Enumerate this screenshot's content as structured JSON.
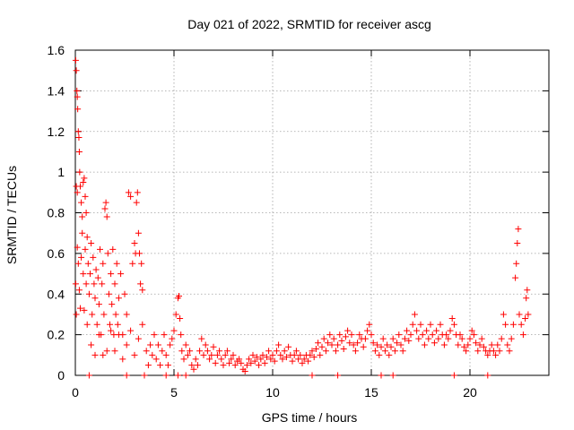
{
  "chart_data": {
    "type": "scatter",
    "title": "Day 021 of 2022, SRMTID for receiver ascg",
    "xlabel": "GPS time / hours",
    "ylabel": "SRMTID / TECUs",
    "xlim": [
      0,
      24
    ],
    "ylim": [
      0,
      1.6
    ],
    "xticks": [
      0,
      5,
      10,
      15,
      20
    ],
    "xtick_labels": [
      "0",
      "5",
      "10",
      "15",
      "20"
    ],
    "yticks": [
      0,
      0.2,
      0.4,
      0.6,
      0.8,
      1.0,
      1.2,
      1.4,
      1.6
    ],
    "ytick_labels": [
      "0",
      "0.2",
      "0.4",
      "0.6",
      "0.8",
      "1",
      "1.2",
      "1.4",
      "1.6"
    ],
    "grid": true,
    "marker": "plus",
    "color": "#ff0000",
    "series": [
      {
        "name": "SRMTID",
        "points": [
          [
            0.02,
            1.55
          ],
          [
            0.05,
            1.5
          ],
          [
            0.08,
            1.4
          ],
          [
            0.1,
            1.37
          ],
          [
            0.12,
            1.31
          ],
          [
            0.15,
            1.2
          ],
          [
            0.18,
            1.17
          ],
          [
            0.2,
            1.1
          ],
          [
            0.22,
            1.0
          ],
          [
            0.05,
            0.93
          ],
          [
            0.1,
            0.9
          ],
          [
            0.25,
            0.93
          ],
          [
            0.3,
            0.85
          ],
          [
            0.35,
            0.78
          ],
          [
            0.4,
            0.95
          ],
          [
            0.45,
            0.97
          ],
          [
            0.5,
            0.88
          ],
          [
            0.55,
            0.8
          ],
          [
            0.02,
            0.45
          ],
          [
            0.05,
            0.3
          ],
          [
            0.1,
            0.63
          ],
          [
            0.15,
            0.55
          ],
          [
            0.2,
            0.42
          ],
          [
            0.25,
            0.33
          ],
          [
            0.3,
            0.58
          ],
          [
            0.35,
            0.7
          ],
          [
            0.4,
            0.5
          ],
          [
            0.45,
            0.32
          ],
          [
            0.5,
            0.62
          ],
          [
            0.55,
            0.45
          ],
          [
            0.6,
            0.68
          ],
          [
            0.65,
            0.55
          ],
          [
            0.7,
            0.4
          ],
          [
            0.75,
            0.5
          ],
          [
            0.8,
            0.65
          ],
          [
            0.85,
            0.3
          ],
          [
            0.9,
            0.58
          ],
          [
            0.95,
            0.45
          ],
          [
            1.0,
            0.38
          ],
          [
            1.05,
            0.52
          ],
          [
            1.1,
            0.25
          ],
          [
            1.15,
            0.48
          ],
          [
            1.2,
            0.35
          ],
          [
            1.25,
            0.62
          ],
          [
            1.3,
            0.2
          ],
          [
            1.35,
            0.45
          ],
          [
            1.4,
            0.55
          ],
          [
            1.45,
            0.3
          ],
          [
            1.5,
            0.82
          ],
          [
            1.55,
            0.85
          ],
          [
            1.6,
            0.78
          ],
          [
            1.65,
            0.6
          ],
          [
            1.7,
            0.4
          ],
          [
            1.75,
            0.25
          ],
          [
            1.8,
            0.5
          ],
          [
            1.85,
            0.35
          ],
          [
            1.9,
            0.62
          ],
          [
            1.95,
            0.2
          ],
          [
            2.0,
            0.45
          ],
          [
            2.05,
            0.3
          ],
          [
            2.1,
            0.55
          ],
          [
            2.15,
            0.25
          ],
          [
            2.2,
            0.38
          ],
          [
            2.3,
            0.5
          ],
          [
            2.4,
            0.2
          ],
          [
            2.5,
            0.4
          ],
          [
            2.6,
            0.3
          ],
          [
            2.7,
            0.9
          ],
          [
            2.8,
            0.88
          ],
          [
            2.9,
            0.55
          ],
          [
            3.0,
            0.65
          ],
          [
            3.05,
            0.6
          ],
          [
            3.1,
            0.85
          ],
          [
            3.15,
            0.9
          ],
          [
            3.2,
            0.7
          ],
          [
            3.25,
            0.6
          ],
          [
            3.3,
            0.45
          ],
          [
            3.35,
            0.55
          ],
          [
            3.4,
            0.42
          ],
          [
            0.6,
            0.25
          ],
          [
            0.8,
            0.15
          ],
          [
            1.0,
            0.1
          ],
          [
            1.2,
            0.2
          ],
          [
            1.4,
            0.1
          ],
          [
            1.6,
            0.12
          ],
          [
            1.8,
            0.22
          ],
          [
            2.0,
            0.12
          ],
          [
            2.2,
            0.2
          ],
          [
            2.4,
            0.08
          ],
          [
            2.6,
            0.15
          ],
          [
            2.8,
            0.22
          ],
          [
            3.0,
            0.1
          ],
          [
            3.2,
            0.18
          ],
          [
            3.4,
            0.25
          ],
          [
            3.6,
            0.12
          ],
          [
            3.7,
            0.05
          ],
          [
            3.8,
            0.15
          ],
          [
            3.9,
            0.1
          ],
          [
            4.0,
            0.2
          ],
          [
            4.1,
            0.08
          ],
          [
            4.2,
            0.15
          ],
          [
            4.3,
            0.05
          ],
          [
            4.4,
            0.12
          ],
          [
            4.5,
            0.2
          ],
          [
            4.6,
            0.1
          ],
          [
            4.7,
            0.05
          ],
          [
            4.8,
            0.15
          ],
          [
            4.9,
            0.18
          ],
          [
            5.0,
            0.22
          ],
          [
            5.1,
            0.3
          ],
          [
            5.2,
            0.38
          ],
          [
            5.25,
            0.39
          ],
          [
            5.3,
            0.28
          ],
          [
            5.35,
            0.2
          ],
          [
            5.4,
            0.12
          ],
          [
            5.5,
            0.08
          ],
          [
            5.6,
            0.15
          ],
          [
            5.7,
            0.1
          ],
          [
            5.8,
            0.12
          ],
          [
            5.9,
            0.05
          ],
          [
            6.0,
            0.03
          ],
          [
            6.1,
            0.08
          ],
          [
            6.2,
            0.05
          ],
          [
            6.3,
            0.12
          ],
          [
            6.4,
            0.18
          ],
          [
            6.5,
            0.1
          ],
          [
            6.6,
            0.15
          ],
          [
            6.7,
            0.12
          ],
          [
            6.8,
            0.08
          ],
          [
            6.9,
            0.1
          ],
          [
            7.0,
            0.14
          ],
          [
            7.1,
            0.06
          ],
          [
            7.2,
            0.1
          ],
          [
            7.3,
            0.12
          ],
          [
            7.4,
            0.08
          ],
          [
            7.5,
            0.05
          ],
          [
            7.6,
            0.1
          ],
          [
            7.7,
            0.12
          ],
          [
            7.8,
            0.06
          ],
          [
            7.9,
            0.08
          ],
          [
            8.0,
            0.1
          ],
          [
            8.1,
            0.05
          ],
          [
            8.2,
            0.07
          ],
          [
            8.3,
            0.08
          ],
          [
            8.4,
            0.06
          ],
          [
            8.5,
            0.03
          ],
          [
            8.6,
            0.02
          ],
          [
            8.7,
            0.05
          ],
          [
            8.8,
            0.08
          ],
          [
            8.9,
            0.06
          ],
          [
            9.0,
            0.1
          ],
          [
            9.1,
            0.07
          ],
          [
            9.2,
            0.09
          ],
          [
            9.3,
            0.05
          ],
          [
            9.4,
            0.08
          ],
          [
            9.5,
            0.1
          ],
          [
            9.6,
            0.06
          ],
          [
            9.7,
            0.09
          ],
          [
            9.8,
            0.12
          ],
          [
            9.9,
            0.08
          ],
          [
            10.0,
            0.1
          ],
          [
            10.1,
            0.07
          ],
          [
            10.2,
            0.12
          ],
          [
            10.3,
            0.15
          ],
          [
            10.4,
            0.1
          ],
          [
            10.5,
            0.08
          ],
          [
            10.6,
            0.12
          ],
          [
            10.7,
            0.09
          ],
          [
            10.8,
            0.14
          ],
          [
            10.9,
            0.1
          ],
          [
            11.0,
            0.07
          ],
          [
            11.1,
            0.1
          ],
          [
            11.2,
            0.12
          ],
          [
            11.3,
            0.08
          ],
          [
            11.4,
            0.1
          ],
          [
            11.5,
            0.06
          ],
          [
            11.6,
            0.08
          ],
          [
            11.7,
            0.1
          ],
          [
            11.8,
            0.07
          ],
          [
            11.9,
            0.1
          ],
          [
            12.0,
            0.12
          ],
          [
            12.1,
            0.09
          ],
          [
            12.2,
            0.13
          ],
          [
            12.3,
            0.16
          ],
          [
            12.4,
            0.1
          ],
          [
            12.5,
            0.14
          ],
          [
            12.6,
            0.18
          ],
          [
            12.7,
            0.12
          ],
          [
            12.8,
            0.16
          ],
          [
            12.9,
            0.2
          ],
          [
            13.0,
            0.15
          ],
          [
            13.1,
            0.18
          ],
          [
            13.2,
            0.12
          ],
          [
            13.3,
            0.15
          ],
          [
            13.4,
            0.2
          ],
          [
            13.5,
            0.17
          ],
          [
            13.6,
            0.13
          ],
          [
            13.7,
            0.19
          ],
          [
            13.8,
            0.22
          ],
          [
            13.9,
            0.16
          ],
          [
            14.0,
            0.2
          ],
          [
            14.1,
            0.15
          ],
          [
            14.2,
            0.12
          ],
          [
            14.3,
            0.16
          ],
          [
            14.4,
            0.2
          ],
          [
            14.5,
            0.18
          ],
          [
            14.6,
            0.14
          ],
          [
            14.7,
            0.18
          ],
          [
            14.8,
            0.22
          ],
          [
            14.9,
            0.25
          ],
          [
            15.0,
            0.2
          ],
          [
            15.1,
            0.16
          ],
          [
            15.2,
            0.12
          ],
          [
            15.3,
            0.15
          ],
          [
            15.4,
            0.1
          ],
          [
            15.5,
            0.14
          ],
          [
            15.6,
            0.18
          ],
          [
            15.7,
            0.12
          ],
          [
            15.8,
            0.15
          ],
          [
            15.9,
            0.1
          ],
          [
            16.0,
            0.14
          ],
          [
            16.1,
            0.18
          ],
          [
            16.2,
            0.12
          ],
          [
            16.3,
            0.16
          ],
          [
            16.4,
            0.2
          ],
          [
            16.5,
            0.15
          ],
          [
            16.6,
            0.12
          ],
          [
            16.7,
            0.18
          ],
          [
            16.8,
            0.22
          ],
          [
            16.9,
            0.17
          ],
          [
            17.0,
            0.2
          ],
          [
            17.1,
            0.25
          ],
          [
            17.2,
            0.3
          ],
          [
            17.3,
            0.22
          ],
          [
            17.4,
            0.18
          ],
          [
            17.5,
            0.25
          ],
          [
            17.6,
            0.2
          ],
          [
            17.7,
            0.15
          ],
          [
            17.8,
            0.22
          ],
          [
            17.9,
            0.18
          ],
          [
            18.0,
            0.25
          ],
          [
            18.1,
            0.2
          ],
          [
            18.2,
            0.16
          ],
          [
            18.3,
            0.22
          ],
          [
            18.4,
            0.18
          ],
          [
            18.5,
            0.25
          ],
          [
            18.6,
            0.2
          ],
          [
            18.7,
            0.15
          ],
          [
            18.8,
            0.2
          ],
          [
            18.9,
            0.18
          ],
          [
            19.0,
            0.22
          ],
          [
            19.1,
            0.28
          ],
          [
            19.2,
            0.25
          ],
          [
            19.3,
            0.2
          ],
          [
            19.4,
            0.15
          ],
          [
            19.5,
            0.2
          ],
          [
            19.6,
            0.18
          ],
          [
            19.7,
            0.14
          ],
          [
            19.8,
            0.12
          ],
          [
            19.9,
            0.15
          ],
          [
            20.0,
            0.18
          ],
          [
            20.1,
            0.22
          ],
          [
            20.2,
            0.2
          ],
          [
            20.3,
            0.16
          ],
          [
            20.4,
            0.12
          ],
          [
            20.5,
            0.15
          ],
          [
            20.6,
            0.18
          ],
          [
            20.7,
            0.14
          ],
          [
            20.8,
            0.12
          ],
          [
            20.9,
            0.1
          ],
          [
            21.0,
            0.12
          ],
          [
            21.1,
            0.15
          ],
          [
            21.2,
            0.12
          ],
          [
            21.3,
            0.1
          ],
          [
            21.4,
            0.15
          ],
          [
            21.5,
            0.12
          ],
          [
            21.6,
            0.18
          ],
          [
            21.7,
            0.3
          ],
          [
            21.8,
            0.25
          ],
          [
            21.9,
            0.15
          ],
          [
            22.0,
            0.12
          ],
          [
            22.1,
            0.18
          ],
          [
            22.2,
            0.25
          ],
          [
            22.3,
            0.48
          ],
          [
            22.35,
            0.55
          ],
          [
            22.4,
            0.65
          ],
          [
            22.45,
            0.72
          ],
          [
            22.5,
            0.3
          ],
          [
            22.6,
            0.25
          ],
          [
            22.7,
            0.2
          ],
          [
            22.8,
            0.28
          ],
          [
            22.85,
            0.38
          ],
          [
            22.9,
            0.42
          ],
          [
            22.95,
            0.3
          ],
          [
            0.7,
            0.0
          ],
          [
            2.6,
            0.0
          ],
          [
            3.5,
            0.0
          ],
          [
            4.6,
            0.0
          ],
          [
            5.2,
            0.0
          ],
          [
            5.6,
            0.0
          ],
          [
            12.0,
            0.0
          ],
          [
            13.3,
            0.0
          ],
          [
            15.5,
            0.0
          ],
          [
            16.1,
            0.0
          ],
          [
            19.2,
            0.0
          ],
          [
            20.9,
            0.0
          ]
        ]
      }
    ]
  }
}
